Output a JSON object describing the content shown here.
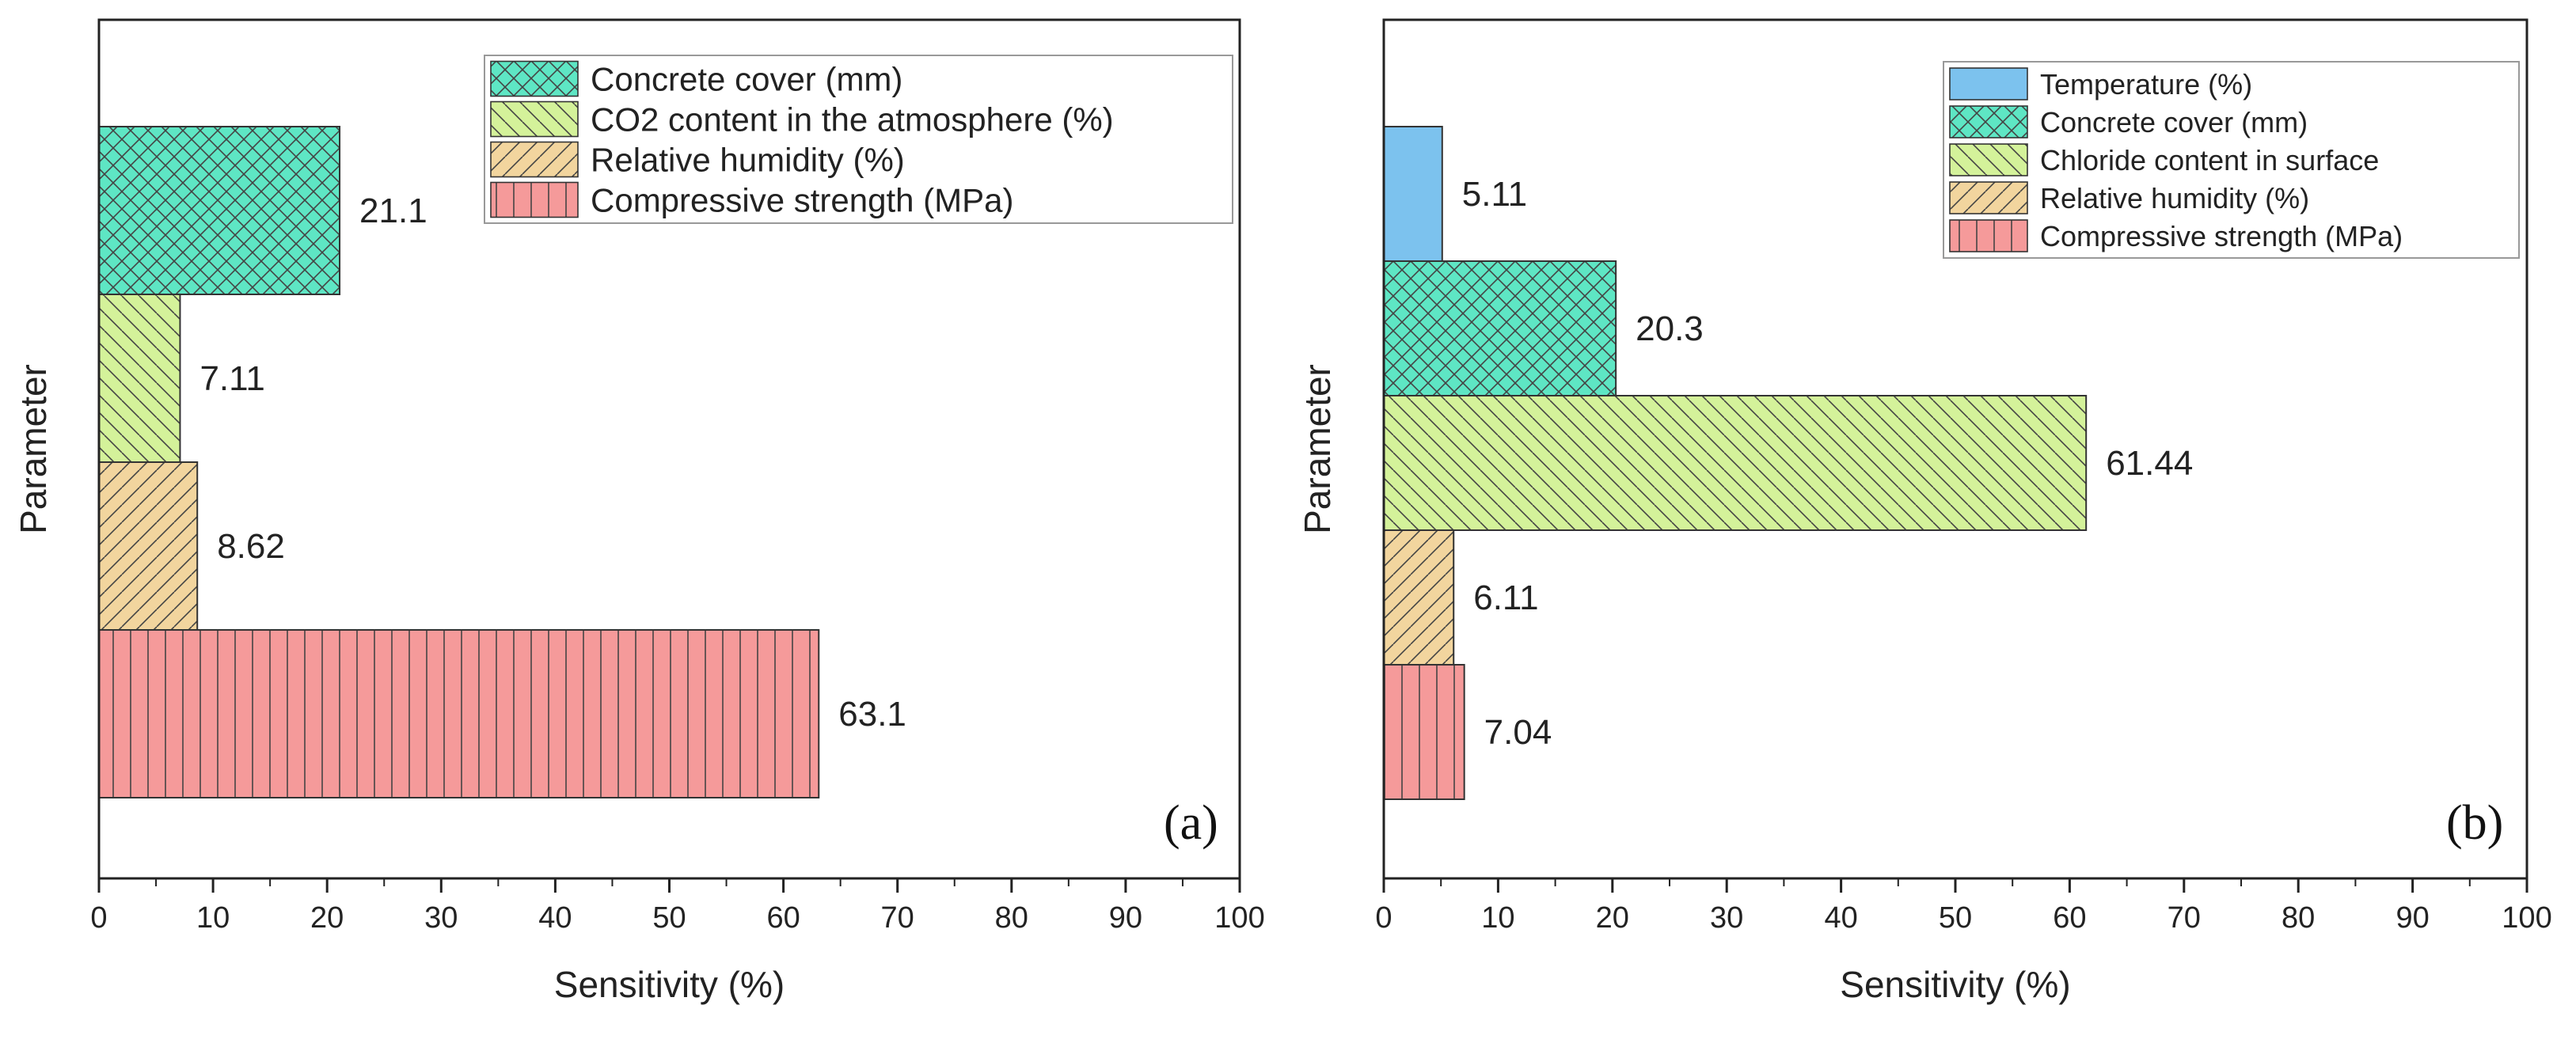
{
  "chart_data": [
    {
      "type": "bar",
      "orientation": "horizontal",
      "panel_label": "(a)",
      "xlabel": "Sensitivity (%)",
      "ylabel": "Parameter",
      "xlim": [
        0,
        100
      ],
      "xticks": [
        "0",
        "10",
        "20",
        "30",
        "40",
        "50",
        "60",
        "70",
        "80",
        "90",
        "100"
      ],
      "grid": false,
      "legend_position": "top-right",
      "bars": [
        {
          "name": "Concrete cover (mm)",
          "value": 21.1,
          "label": "21.1",
          "color": "#5ee6c4",
          "pattern": "crosshatch"
        },
        {
          "name": "CO2 content in the atmosphere (%)",
          "value": 7.11,
          "label": "7.11",
          "color": "#d4f29a",
          "pattern": "back-diagonal"
        },
        {
          "name": "Relative humidity (%)",
          "value": 8.62,
          "label": "8.62",
          "color": "#f2d59e",
          "pattern": "forward-diagonal"
        },
        {
          "name": "Compressive strength (MPa)",
          "value": 63.1,
          "label": "63.1",
          "color": "#f59a9a",
          "pattern": "vertical"
        }
      ]
    },
    {
      "type": "bar",
      "orientation": "horizontal",
      "panel_label": "(b)",
      "xlabel": "Sensitivity (%)",
      "ylabel": "Parameter",
      "xlim": [
        0,
        100
      ],
      "xticks": [
        "0",
        "10",
        "20",
        "30",
        "40",
        "50",
        "60",
        "70",
        "80",
        "90",
        "100"
      ],
      "grid": false,
      "legend_position": "top-right",
      "bars": [
        {
          "name": "Temperature (%)",
          "value": 5.11,
          "label": "5.11",
          "color": "#7cc2ee",
          "pattern": "solid"
        },
        {
          "name": "Concrete cover (mm)",
          "value": 20.3,
          "label": "20.3",
          "color": "#5ee6c4",
          "pattern": "crosshatch"
        },
        {
          "name": "Chloride content in surface",
          "value": 61.44,
          "label": "61.44",
          "color": "#d4f29a",
          "pattern": "back-diagonal"
        },
        {
          "name": "Relative humidity (%)",
          "value": 6.11,
          "label": "6.11",
          "color": "#f2d59e",
          "pattern": "forward-diagonal"
        },
        {
          "name": "Compressive strength (MPa)",
          "value": 7.04,
          "label": "7.04",
          "color": "#f59a9a",
          "pattern": "vertical"
        }
      ]
    }
  ]
}
